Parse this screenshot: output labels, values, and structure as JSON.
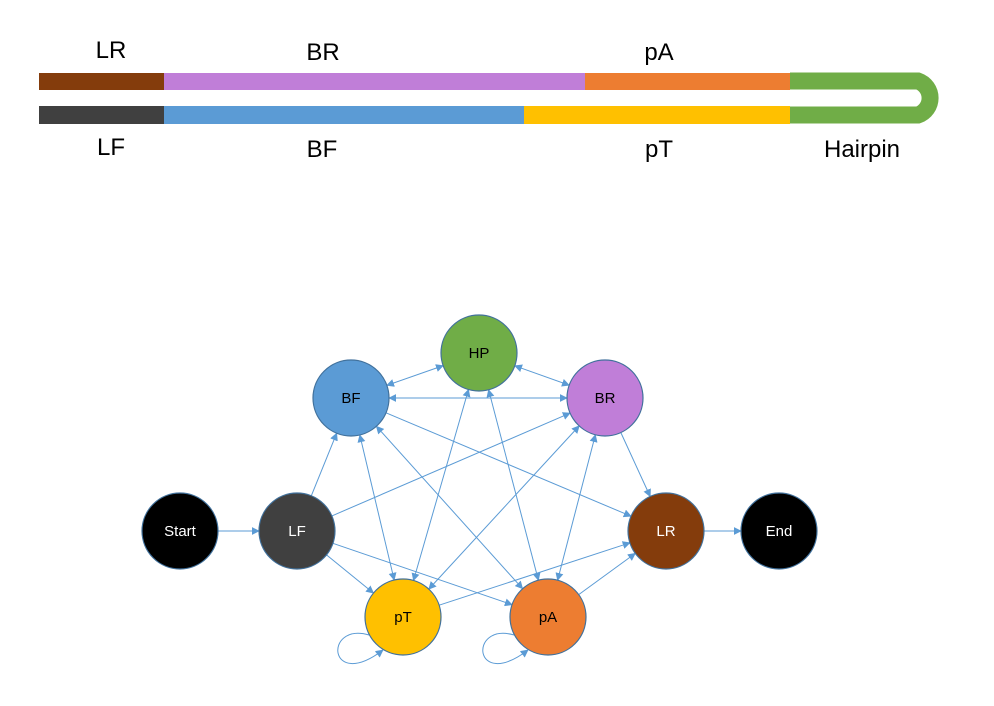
{
  "strand": {
    "top_labels": [
      "LR",
      "BR",
      "pA"
    ],
    "bottom_labels": [
      "LF",
      "BF",
      "pT",
      "Hairpin"
    ],
    "colors": {
      "LR": "#843c0c",
      "BR": "#c07ed8",
      "pA": "#ed7d31",
      "LF": "#404040",
      "BF": "#5b9bd5",
      "pT": "#ffc000",
      "Hairpin": "#70ad47"
    }
  },
  "graph": {
    "nodes": [
      {
        "id": "start",
        "label": "Start",
        "fill": "#000000",
        "text": "#ffffff"
      },
      {
        "id": "lf",
        "label": "LF",
        "fill": "#404040",
        "text": "#ffffff"
      },
      {
        "id": "bf",
        "label": "BF",
        "fill": "#5b9bd5",
        "text": "#000000"
      },
      {
        "id": "hp",
        "label": "HP",
        "fill": "#70ad47",
        "text": "#000000"
      },
      {
        "id": "br",
        "label": "BR",
        "fill": "#c07ed8",
        "text": "#000000"
      },
      {
        "id": "lr",
        "label": "LR",
        "fill": "#843c0c",
        "text": "#ffffff"
      },
      {
        "id": "end",
        "label": "End",
        "fill": "#000000",
        "text": "#ffffff"
      },
      {
        "id": "pt",
        "label": "pT",
        "fill": "#ffc000",
        "text": "#000000"
      },
      {
        "id": "pa",
        "label": "pA",
        "fill": "#ed7d31",
        "text": "#000000"
      }
    ],
    "edge_color": "#5b9bd5"
  }
}
